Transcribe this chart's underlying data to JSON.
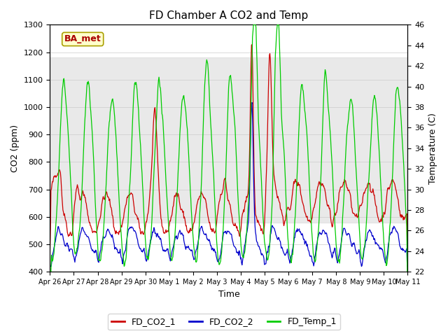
{
  "title": "FD Chamber A CO2 and Temp",
  "xlabel": "Time",
  "ylabel_left": "CO2 (ppm)",
  "ylabel_right": "Temperature (C)",
  "ylim_left": [
    400,
    1300
  ],
  "ylim_right": [
    22,
    46
  ],
  "yticks_left": [
    400,
    500,
    600,
    700,
    800,
    900,
    1000,
    1100,
    1200,
    1300
  ],
  "yticks_right": [
    22,
    24,
    26,
    28,
    30,
    32,
    34,
    36,
    38,
    40,
    42,
    44,
    46
  ],
  "xticklabels": [
    "Apr 26",
    "Apr 27",
    "Apr 28",
    "Apr 29",
    "Apr 30",
    "May 1",
    "May 2",
    "May 3",
    "May 4",
    "May 5",
    "May 6",
    "May 7",
    "May 8",
    "May 9",
    "May 10",
    "May 11"
  ],
  "color_co2_1": "#cc0000",
  "color_co2_2": "#0000cc",
  "color_temp": "#00cc00",
  "legend_labels": [
    "FD_CO2_1",
    "FD_CO2_2",
    "FD_Temp_1"
  ],
  "annotation_text": "BA_met",
  "annotation_color": "#aa0000",
  "annotation_bg": "#ffffcc",
  "shade_low": 580,
  "shade_high": 1180,
  "background_color": "#ffffff",
  "grid_color": "#cccccc",
  "n_days": 15,
  "seed": 42
}
